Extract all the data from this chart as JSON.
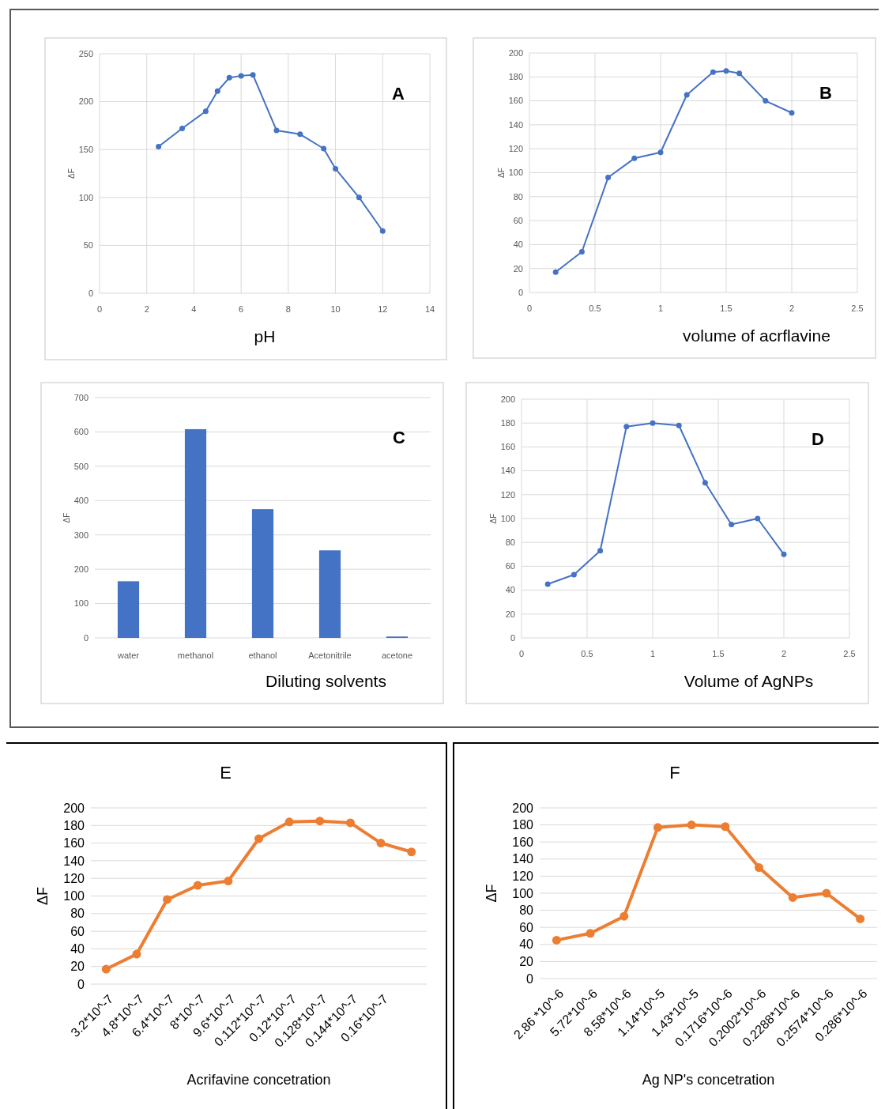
{
  "chart_data": [
    {
      "type": "line",
      "annotations": [
        "A"
      ],
      "xlabel": "pH",
      "ylabel": "ΔF",
      "x": [
        2.5,
        3.5,
        4.5,
        5,
        5.5,
        6,
        6.5,
        7.5,
        8.5,
        9.5,
        10,
        11,
        12
      ],
      "series": [
        {
          "color": "#4472c4",
          "values": [
            153,
            172,
            190,
            211,
            225,
            227,
            228,
            170,
            166,
            151,
            130,
            100,
            65
          ]
        }
      ],
      "xlim": [
        0,
        14
      ],
      "xticks": [
        0,
        2,
        4,
        6,
        8,
        10,
        12,
        14
      ],
      "ylim": [
        0,
        250
      ],
      "yticks": [
        0,
        50,
        100,
        150,
        200,
        250
      ],
      "grid": true,
      "marker": "circle"
    },
    {
      "type": "line",
      "annotations": [
        "B"
      ],
      "xlabel": "volume of acrflavine",
      "ylabel": "ΔF",
      "x": [
        0.2,
        0.4,
        0.6,
        0.8,
        1,
        1.2,
        1.4,
        1.5,
        1.6,
        1.8,
        2
      ],
      "series": [
        {
          "color": "#4472c4",
          "values": [
            17,
            34,
            96,
            112,
            117,
            165,
            184,
            185,
            183,
            160,
            150
          ]
        }
      ],
      "xlim": [
        0,
        2.5
      ],
      "xticks": [
        0,
        0.5,
        1,
        1.5,
        2,
        2.5
      ],
      "ylim": [
        0,
        200
      ],
      "yticks": [
        0,
        20,
        40,
        60,
        80,
        100,
        120,
        140,
        160,
        180,
        200
      ],
      "grid": true,
      "marker": "circle"
    },
    {
      "type": "bar",
      "annotations": [
        "C"
      ],
      "xlabel": "Diluting solvents",
      "ylabel": "ΔF",
      "categories": [
        "water",
        "methanol",
        "ethanol",
        "Acetonitrile",
        "acetone"
      ],
      "series": [
        {
          "color": "#4472c4",
          "values": [
            165,
            608,
            375,
            255,
            4
          ]
        }
      ],
      "ylim": [
        0,
        700
      ],
      "yticks": [
        0,
        100,
        200,
        300,
        400,
        500,
        600,
        700
      ],
      "grid": "y"
    },
    {
      "type": "line",
      "annotations": [
        "D"
      ],
      "xlabel": "Volume of AgNPs",
      "ylabel": "ΔF",
      "x": [
        0.2,
        0.4,
        0.6,
        0.8,
        1,
        1.2,
        1.4,
        1.6,
        1.8,
        2
      ],
      "series": [
        {
          "color": "#4472c4",
          "values": [
            45,
            53,
            73,
            177,
            180,
            178,
            130,
            95,
            100,
            70
          ]
        }
      ],
      "xlim": [
        0,
        2.5
      ],
      "xticks": [
        0,
        0.5,
        1,
        1.5,
        2,
        2.5
      ],
      "ylim": [
        0,
        200
      ],
      "yticks": [
        0,
        20,
        40,
        60,
        80,
        100,
        120,
        140,
        160,
        180,
        200
      ],
      "grid": true,
      "marker": "circle"
    },
    {
      "type": "line",
      "title": "E",
      "xlabel": "Acrifavine concetration",
      "ylabel": "ΔF",
      "categories": [
        "3.2*10^-7",
        "4.8*10^-7",
        "6.4*10^-7",
        "8*10^-7",
        "9.6*10^-7",
        "0.112*10^-7",
        "0.12*10^-7",
        "0.128*10^-7",
        "0.144*10^-7",
        "0.16*10^-7",
        null
      ],
      "series": [
        {
          "color": "#ed7d31",
          "values": [
            17,
            34,
            96,
            112,
            117,
            165,
            184,
            185,
            183,
            160,
            150
          ]
        }
      ],
      "ylim": [
        0,
        200
      ],
      "yticks": [
        0,
        20,
        40,
        60,
        80,
        100,
        120,
        140,
        160,
        180,
        200
      ],
      "grid": "y",
      "marker": "circle"
    },
    {
      "type": "line",
      "title": "F",
      "xlabel": "Ag NP's concetration",
      "ylabel": "ΔF",
      "categories": [
        "2.86 *10^-6",
        "5.72*10^-6",
        "8.58*10^-6",
        "1.14*10^-5",
        "1.43*10^-5",
        "0.1716*10^-6",
        "0.2002*10^-6",
        "0.2288*10^-6",
        "0.2574*10^-6",
        "0.286*10^-6"
      ],
      "series": [
        {
          "color": "#ed7d31",
          "values": [
            45,
            53,
            73,
            177,
            180,
            178,
            130,
            95,
            100,
            70
          ]
        }
      ],
      "ylim": [
        0,
        200
      ],
      "yticks": [
        0,
        20,
        40,
        60,
        80,
        100,
        120,
        140,
        160,
        180,
        200
      ],
      "grid": "y",
      "marker": "circle"
    }
  ]
}
